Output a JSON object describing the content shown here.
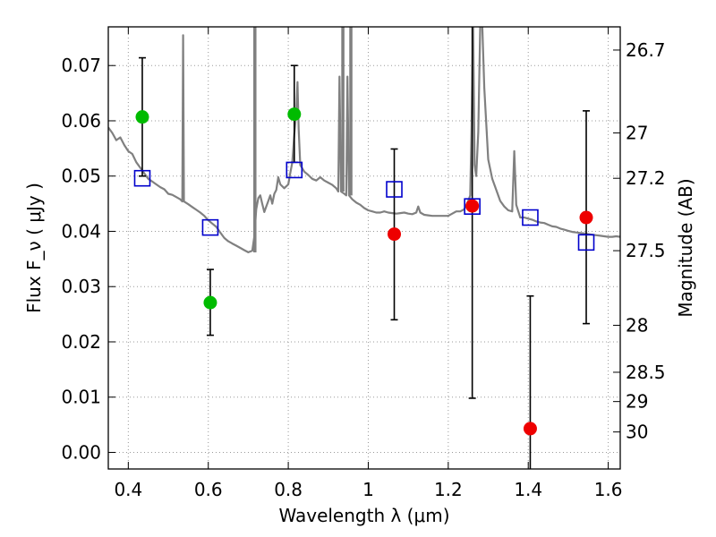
{
  "chart_data": {
    "type": "scatter",
    "xlabel": "Wavelength λ (μm)",
    "ylabel": "Flux F_ν ( μJy )",
    "y2label": "Magnitude (AB)",
    "xlim": [
      0.35,
      1.63
    ],
    "ylim": [
      -0.003,
      0.077
    ],
    "x_ticks": [
      0.4,
      0.6,
      0.8,
      1.0,
      1.2,
      1.4,
      1.6
    ],
    "x_tick_labels": [
      "0.4",
      "0.6",
      "0.8",
      "1",
      "1.2",
      "1.4",
      "1.6"
    ],
    "y_ticks": [
      0.0,
      0.01,
      0.02,
      0.03,
      0.04,
      0.05,
      0.06,
      0.07
    ],
    "y_tick_labels": [
      "0.00",
      "0.01",
      "0.02",
      "0.03",
      "0.04",
      "0.05",
      "0.06",
      "0.07"
    ],
    "mag_ticks": [
      {
        "flux": 0.0728,
        "label": "26.7"
      },
      {
        "flux": 0.0578,
        "label": "27"
      },
      {
        "flux": 0.0496,
        "label": "27.2"
      },
      {
        "flux": 0.0365,
        "label": "27.5"
      },
      {
        "flux": 0.023,
        "label": "28"
      },
      {
        "flux": 0.0145,
        "label": "28.5"
      },
      {
        "flux": 0.0092,
        "label": "29"
      },
      {
        "flux": 0.0037,
        "label": "30"
      }
    ],
    "grid": true,
    "colors": {
      "model": "#808080",
      "green": "#00bb00",
      "red": "#ee0000",
      "box": "#0000cc",
      "errorbar": "#000000",
      "grid": "#999999"
    },
    "model_spectrum": [
      [
        0.35,
        0.0588
      ],
      [
        0.36,
        0.0578
      ],
      [
        0.37,
        0.0565
      ],
      [
        0.38,
        0.057
      ],
      [
        0.39,
        0.0556
      ],
      [
        0.4,
        0.0545
      ],
      [
        0.41,
        0.054
      ],
      [
        0.42,
        0.0525
      ],
      [
        0.43,
        0.0515
      ],
      [
        0.44,
        0.0505
      ],
      [
        0.45,
        0.0495
      ],
      [
        0.46,
        0.049
      ],
      [
        0.47,
        0.0485
      ],
      [
        0.48,
        0.048
      ],
      [
        0.49,
        0.0476
      ],
      [
        0.5,
        0.0468
      ],
      [
        0.51,
        0.0466
      ],
      [
        0.52,
        0.0462
      ],
      [
        0.53,
        0.0458
      ],
      [
        0.535,
        0.0454
      ],
      [
        0.537,
        0.0755
      ],
      [
        0.539,
        0.0454
      ],
      [
        0.55,
        0.0449
      ],
      [
        0.56,
        0.0444
      ],
      [
        0.57,
        0.0439
      ],
      [
        0.58,
        0.0434
      ],
      [
        0.59,
        0.0428
      ],
      [
        0.6,
        0.042
      ],
      [
        0.61,
        0.0414
      ],
      [
        0.62,
        0.0408
      ],
      [
        0.63,
        0.0398
      ],
      [
        0.64,
        0.0388
      ],
      [
        0.65,
        0.0382
      ],
      [
        0.66,
        0.0378
      ],
      [
        0.67,
        0.0374
      ],
      [
        0.68,
        0.037
      ],
      [
        0.69,
        0.0366
      ],
      [
        0.7,
        0.0362
      ],
      [
        0.71,
        0.0365
      ],
      [
        0.715,
        0.039
      ],
      [
        0.72,
        0.044
      ],
      [
        0.725,
        0.046
      ],
      [
        0.73,
        0.0465
      ],
      [
        0.735,
        0.045
      ],
      [
        0.74,
        0.0435
      ],
      [
        0.745,
        0.0445
      ],
      [
        0.75,
        0.0455
      ],
      [
        0.755,
        0.0465
      ],
      [
        0.76,
        0.045
      ],
      [
        0.765,
        0.0468
      ],
      [
        0.77,
        0.0475
      ],
      [
        0.775,
        0.0498
      ],
      [
        0.78,
        0.0485
      ],
      [
        0.79,
        0.0478
      ],
      [
        0.8,
        0.0485
      ],
      [
        0.805,
        0.0505
      ],
      [
        0.81,
        0.0525
      ],
      [
        0.815,
        0.0575
      ],
      [
        0.82,
        0.0615
      ],
      [
        0.823,
        0.067
      ],
      [
        0.826,
        0.0585
      ],
      [
        0.83,
        0.052
      ],
      [
        0.84,
        0.0508
      ],
      [
        0.85,
        0.0502
      ],
      [
        0.86,
        0.0495
      ],
      [
        0.87,
        0.0492
      ],
      [
        0.88,
        0.0498
      ],
      [
        0.89,
        0.0492
      ],
      [
        0.9,
        0.0488
      ],
      [
        0.91,
        0.0484
      ],
      [
        0.92,
        0.0478
      ],
      [
        0.925,
        0.0472
      ],
      [
        0.928,
        0.068
      ],
      [
        0.932,
        0.0472
      ],
      [
        0.94,
        0.0468
      ],
      [
        0.945,
        0.0465
      ],
      [
        0.948,
        0.068
      ],
      [
        0.952,
        0.0465
      ],
      [
        0.96,
        0.0458
      ],
      [
        0.97,
        0.0452
      ],
      [
        0.98,
        0.0448
      ],
      [
        0.99,
        0.0442
      ],
      [
        1.0,
        0.0438
      ],
      [
        1.01,
        0.0436
      ],
      [
        1.02,
        0.0434
      ],
      [
        1.03,
        0.0434
      ],
      [
        1.04,
        0.0436
      ],
      [
        1.05,
        0.0434
      ],
      [
        1.06,
        0.0433
      ],
      [
        1.07,
        0.0432
      ],
      [
        1.08,
        0.0433
      ],
      [
        1.09,
        0.0434
      ],
      [
        1.1,
        0.0432
      ],
      [
        1.11,
        0.0431
      ],
      [
        1.12,
        0.0434
      ],
      [
        1.125,
        0.0445
      ],
      [
        1.13,
        0.0434
      ],
      [
        1.14,
        0.043
      ],
      [
        1.15,
        0.0429
      ],
      [
        1.16,
        0.0428
      ],
      [
        1.17,
        0.0428
      ],
      [
        1.18,
        0.0428
      ],
      [
        1.19,
        0.0428
      ],
      [
        1.2,
        0.0428
      ],
      [
        1.21,
        0.0432
      ],
      [
        1.22,
        0.0436
      ],
      [
        1.23,
        0.0436
      ],
      [
        1.24,
        0.044
      ],
      [
        1.25,
        0.0455
      ],
      [
        1.255,
        0.0465
      ],
      [
        1.258,
        0.058
      ],
      [
        1.262,
        0.0775
      ],
      [
        1.266,
        0.052
      ],
      [
        1.27,
        0.05
      ],
      [
        1.275,
        0.058
      ],
      [
        1.28,
        0.0775
      ],
      [
        1.285,
        0.0775
      ],
      [
        1.29,
        0.066
      ],
      [
        1.3,
        0.053
      ],
      [
        1.31,
        0.0495
      ],
      [
        1.32,
        0.0475
      ],
      [
        1.33,
        0.0455
      ],
      [
        1.34,
        0.0445
      ],
      [
        1.35,
        0.0438
      ],
      [
        1.36,
        0.0436
      ],
      [
        1.365,
        0.0545
      ],
      [
        1.37,
        0.0448
      ],
      [
        1.38,
        0.0425
      ],
      [
        1.39,
        0.0425
      ],
      [
        1.4,
        0.0423
      ],
      [
        1.41,
        0.0421
      ],
      [
        1.42,
        0.0418
      ],
      [
        1.43,
        0.0416
      ],
      [
        1.44,
        0.0415
      ],
      [
        1.45,
        0.0412
      ],
      [
        1.46,
        0.0409
      ],
      [
        1.47,
        0.0408
      ],
      [
        1.48,
        0.0405
      ],
      [
        1.49,
        0.0403
      ],
      [
        1.5,
        0.0401
      ],
      [
        1.51,
        0.0399
      ],
      [
        1.52,
        0.0398
      ],
      [
        1.53,
        0.0397
      ],
      [
        1.54,
        0.0396
      ],
      [
        1.55,
        0.0395
      ],
      [
        1.56,
        0.0394
      ],
      [
        1.57,
        0.0393
      ],
      [
        1.58,
        0.0392
      ],
      [
        1.59,
        0.0391
      ],
      [
        1.6,
        0.039
      ],
      [
        1.61,
        0.039
      ],
      [
        1.62,
        0.0391
      ],
      [
        1.63,
        0.039
      ]
    ],
    "model_spikes": [
      [
        0.715,
        0.0362,
        0.0775
      ],
      [
        0.718,
        0.0362,
        0.0775
      ],
      [
        0.935,
        0.0472,
        0.0775
      ],
      [
        0.938,
        0.0472,
        0.0775
      ],
      [
        0.955,
        0.0465,
        0.0775
      ],
      [
        0.958,
        0.0465,
        0.0775
      ]
    ],
    "series": [
      {
        "marker": "circle",
        "color_key": "green",
        "points": [
          {
            "x": 0.435,
            "y": 0.0607,
            "err_lo": 0.05,
            "err_hi": 0.0714
          },
          {
            "x": 0.605,
            "y": 0.0271,
            "err_lo": 0.0212,
            "err_hi": 0.0331
          },
          {
            "x": 0.815,
            "y": 0.0612,
            "err_lo": 0.0525,
            "err_hi": 0.07
          }
        ]
      },
      {
        "marker": "circle",
        "color_key": "red",
        "points": [
          {
            "x": 1.065,
            "y": 0.0395,
            "err_lo": 0.024,
            "err_hi": 0.0549
          },
          {
            "x": 1.26,
            "y": 0.0446,
            "err_lo": 0.0098,
            "err_hi": 0.079
          },
          {
            "x": 1.405,
            "y": 0.0043,
            "err_lo": -0.004,
            "err_hi": 0.0283
          },
          {
            "x": 1.545,
            "y": 0.0425,
            "err_lo": 0.0233,
            "err_hi": 0.0618
          }
        ]
      },
      {
        "marker": "square",
        "color_key": "box",
        "points": [
          {
            "x": 0.435,
            "y": 0.0496
          },
          {
            "x": 0.605,
            "y": 0.0407
          },
          {
            "x": 0.815,
            "y": 0.0511
          },
          {
            "x": 1.065,
            "y": 0.0476
          },
          {
            "x": 1.26,
            "y": 0.0445
          },
          {
            "x": 1.405,
            "y": 0.0425
          },
          {
            "x": 1.545,
            "y": 0.038
          }
        ]
      }
    ]
  }
}
